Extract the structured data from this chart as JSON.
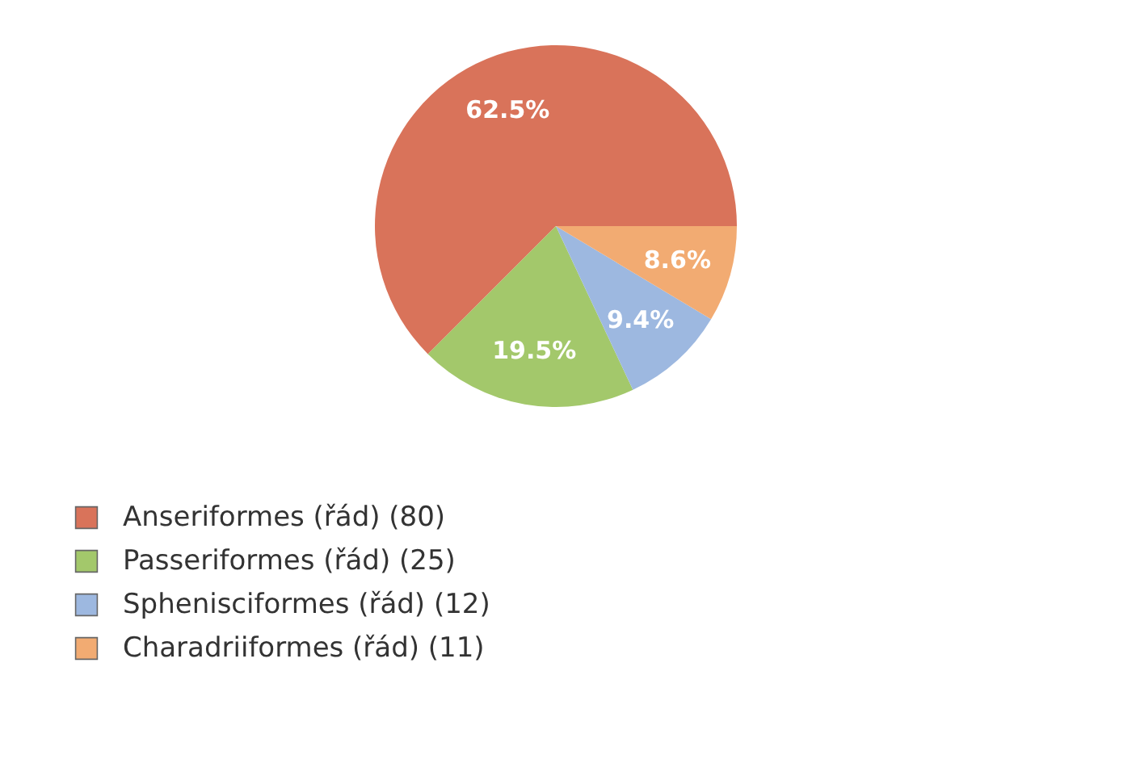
{
  "chart_data": {
    "type": "pie",
    "categories": [
      "Anseriformes (řád) (80)",
      "Passeriformes (řád) (25)",
      "Sphenisciformes (řád) (12)",
      "Charadriiformes (řád) (11)"
    ],
    "values": [
      62.5,
      19.5,
      9.4,
      8.6
    ],
    "value_labels": [
      "62.5%",
      "19.5%",
      "9.4%",
      "8.6%"
    ],
    "colors": [
      "#d9735a",
      "#a3c86b",
      "#9db8e0",
      "#f2ab72"
    ],
    "legend": "bottom left"
  }
}
